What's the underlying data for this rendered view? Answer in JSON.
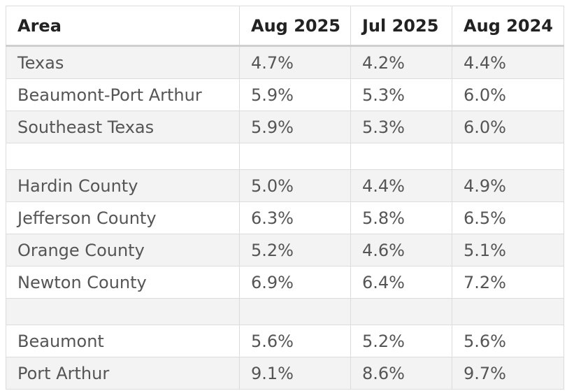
{
  "table": {
    "header": [
      "Area",
      "Aug 2025",
      "Jul 2025",
      "Aug 2024"
    ],
    "groups": [
      [
        [
          "Texas",
          "4.7%",
          "4.2%",
          "4.4%"
        ],
        [
          "Beaumont-Port Arthur",
          "5.9%",
          "5.3%",
          "6.0%"
        ],
        [
          "Southeast Texas",
          "5.9%",
          "5.3%",
          "6.0%"
        ]
      ],
      [
        [
          "Hardin County",
          "5.0%",
          "4.4%",
          "4.9%"
        ],
        [
          "Jefferson County",
          "6.3%",
          "5.8%",
          "6.5%"
        ],
        [
          "Orange County",
          "5.2%",
          "4.6%",
          "5.1%"
        ],
        [
          "Newton County",
          "6.9%",
          "6.4%",
          "7.2%"
        ]
      ],
      [
        [
          "Beaumont",
          "5.6%",
          "5.2%",
          "5.6%"
        ],
        [
          "Port Arthur",
          "9.1%",
          "8.6%",
          "9.7%"
        ]
      ]
    ]
  }
}
